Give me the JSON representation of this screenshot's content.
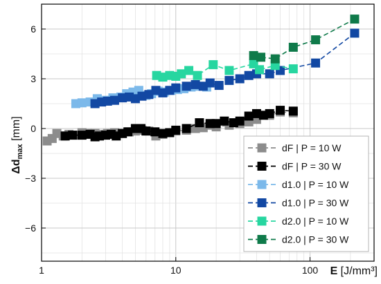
{
  "chart_data": {
    "type": "scatter",
    "title": "",
    "xlabel": {
      "main": "E",
      "unit": " [J/mm³]"
    },
    "ylabel": {
      "main": "Δd",
      "sub": "max",
      "unit": " [mm]"
    },
    "xscale": "log",
    "xlim": [
      1,
      300
    ],
    "ylim": [
      -8,
      7.5
    ],
    "grid": true,
    "legend_position": "bottom-right",
    "x_ticks": [
      {
        "value": 1,
        "label": "1"
      },
      {
        "value": 10,
        "label": "10"
      },
      {
        "value": 100,
        "label": "100"
      }
    ],
    "y_ticks": [
      {
        "value": 6,
        "label": "6"
      },
      {
        "value": 3,
        "label": "3"
      },
      {
        "value": 0,
        "label": "0"
      },
      {
        "value": -3,
        "label": "−3"
      },
      {
        "value": -6,
        "label": "−6"
      }
    ],
    "series": [
      {
        "name": "dF | P = 10 W",
        "color": "#8c8c8c",
        "dashed": true,
        "x": [
          1.1,
          1.2,
          1.3,
          1.45,
          1.6,
          1.8,
          2.0,
          2.2,
          2.5,
          2.8,
          3.1,
          3.5,
          4.0,
          4.5,
          5.0,
          5.6,
          6.3,
          7.1,
          8.0,
          9.0,
          10.0,
          12.0,
          14.0,
          16.0,
          18.0,
          20.0,
          25.0,
          30.0,
          35.0,
          40.0,
          50.0,
          60.0,
          75.0
        ],
        "y": [
          -0.75,
          -0.6,
          -0.3,
          -0.45,
          -0.35,
          -0.4,
          -0.25,
          -0.3,
          -0.3,
          -0.35,
          -0.3,
          -0.25,
          -0.3,
          -0.2,
          -0.15,
          -0.1,
          -0.15,
          -0.45,
          -0.35,
          -0.25,
          -0.15,
          -0.1,
          0.0,
          0.05,
          0.2,
          0.1,
          0.2,
          0.3,
          0.4,
          0.55,
          0.8,
          1.0,
          0.95
        ]
      },
      {
        "name": "dF | P = 30 W",
        "color": "#000000",
        "dashed": true,
        "x": [
          1.5,
          1.7,
          2.0,
          2.3,
          2.5,
          2.7,
          3.0,
          3.3,
          3.6,
          4.0,
          4.4,
          5.0,
          5.5,
          6.0,
          7.0,
          8.0,
          9.0,
          10.0,
          12.0,
          15.0,
          18.0,
          20.0,
          23.0,
          27.0,
          30.0,
          35.0,
          40.0,
          45.0,
          50.0,
          60.0,
          75.0
        ],
        "y": [
          -0.45,
          -0.4,
          -0.4,
          -0.35,
          -0.5,
          -0.45,
          -0.4,
          -0.35,
          -0.45,
          -0.3,
          -0.2,
          0.0,
          0.0,
          -0.15,
          -0.2,
          -0.3,
          -0.25,
          -0.1,
          0.0,
          0.35,
          0.3,
          0.3,
          0.45,
          0.35,
          0.45,
          0.75,
          0.9,
          0.8,
          0.9,
          1.1,
          1.05
        ]
      },
      {
        "name": "d1.0 | P = 10 W",
        "color": "#7cb9ea",
        "dashed": true,
        "x": [
          1.8,
          2.0,
          2.3,
          2.6,
          3.0,
          3.4,
          3.9,
          4.3,
          4.8,
          5.3,
          6.0,
          6.6,
          7.4,
          8.2,
          9.2,
          10.3,
          11.5,
          13.0,
          15.0,
          17.0
        ],
        "y": [
          1.5,
          1.55,
          1.6,
          1.8,
          1.7,
          1.85,
          1.9,
          2.1,
          2.2,
          2.3,
          2.0,
          2.1,
          2.25,
          2.2,
          2.3,
          2.35,
          2.4,
          2.5,
          2.55,
          2.5
        ]
      },
      {
        "name": "d1.0 | P = 30 W",
        "color": "#1248a3",
        "dashed": true,
        "x": [
          2.5,
          2.8,
          3.1,
          3.5,
          4.0,
          4.5,
          5.0,
          5.6,
          6.3,
          7.1,
          8.0,
          9.0,
          10.0,
          12.0,
          14.0,
          16.0,
          18.0,
          21.0,
          25.0,
          30.0,
          35.0,
          40.0,
          50.0,
          60.0,
          110.0,
          215.0
        ],
        "y": [
          1.5,
          1.6,
          1.65,
          1.7,
          1.85,
          1.9,
          1.8,
          1.95,
          2.05,
          2.3,
          2.15,
          2.3,
          2.45,
          2.55,
          2.65,
          2.55,
          2.75,
          2.6,
          2.9,
          3.0,
          3.2,
          3.3,
          3.3,
          3.5,
          3.95,
          5.75
        ]
      },
      {
        "name": "d2.0 | P = 10 W",
        "color": "#27d6a0",
        "dashed": true,
        "x": [
          7.2,
          8.0,
          9.0,
          10.0,
          11.0,
          12.5,
          14.5,
          19.0,
          25.0,
          38.0,
          42.0,
          55.0,
          75.0
        ],
        "y": [
          3.2,
          3.1,
          3.2,
          3.15,
          3.3,
          3.5,
          3.2,
          3.85,
          3.5,
          3.9,
          3.55,
          3.8,
          3.6
        ]
      },
      {
        "name": "d2.0 | P = 30 W",
        "color": "#0f7a4a",
        "dashed": true,
        "x": [
          38.0,
          43.0,
          55.0,
          75.0,
          110.0,
          215.0
        ],
        "y": [
          4.4,
          4.3,
          4.2,
          4.9,
          5.35,
          6.6
        ]
      }
    ]
  }
}
